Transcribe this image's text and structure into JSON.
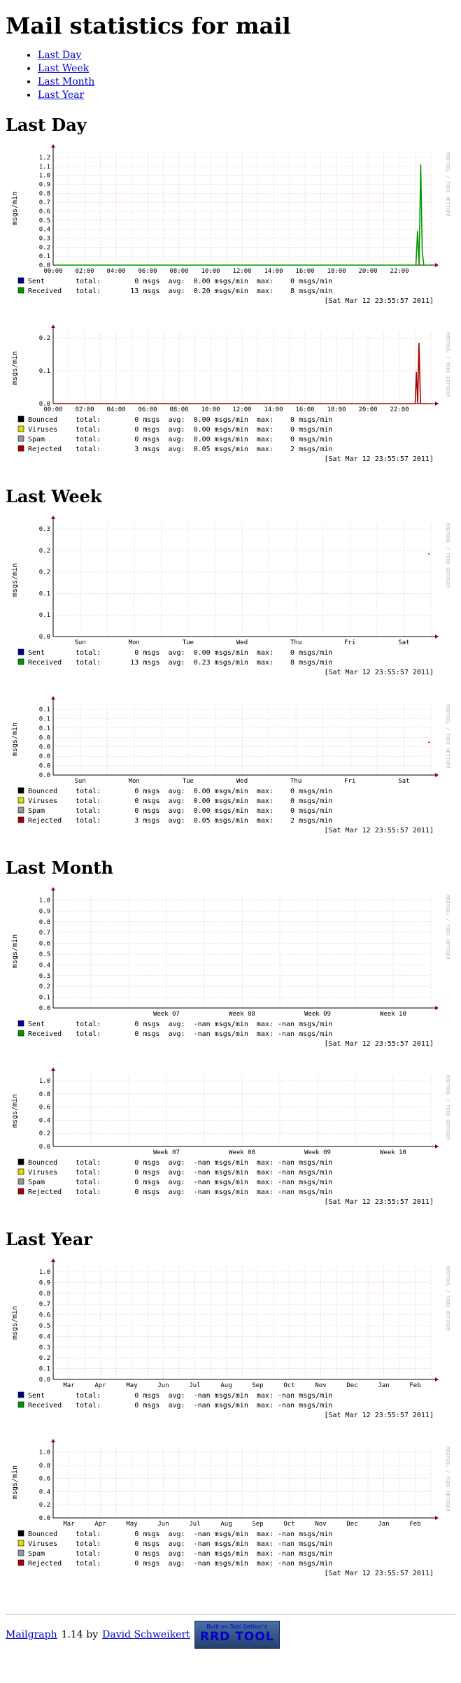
{
  "page": {
    "title": "Mail statistics for mail",
    "nav": [
      "Last Day",
      "Last Week",
      "Last Month",
      "Last Year"
    ]
  },
  "timestamp": "[Sat Mar 12 23:55:57 2011]",
  "watermark": "RRDTOOL / TOBI OETIKER",
  "ylabel": "msgs/min",
  "colors": {
    "sent": "#000099",
    "received": "#009900",
    "bounced": "#000000",
    "viruses": "#dddd00",
    "spam": "#999999",
    "rejected": "#aa0000",
    "grid": "#f0c0c0",
    "arrow": "#990000"
  },
  "sections": [
    {
      "title": "Last Day",
      "charts": [
        {
          "type": "line",
          "xlabels": [
            "00:00",
            "02:00",
            "04:00",
            "06:00",
            "08:00",
            "10:00",
            "12:00",
            "14:00",
            "16:00",
            "18:00",
            "20:00",
            "22:00"
          ],
          "yticks": [
            "0.0",
            "0.1",
            "0.2",
            "0.3",
            "0.4",
            "0.5",
            "0.6",
            "0.7",
            "0.8",
            "0.9",
            "1.0",
            "1.1",
            "1.2"
          ],
          "ymax": 1.2,
          "series": [
            {
              "key": "received",
              "points": [
                [
                  0,
                  0
                ],
                [
                  23.05,
                  0
                ],
                [
                  23.15,
                  0.38
                ],
                [
                  23.25,
                  0
                ],
                [
                  23.35,
                  1.12
                ],
                [
                  23.45,
                  0.15
                ],
                [
                  23.55,
                  0
                ],
                [
                  24,
                  0
                ]
              ]
            }
          ],
          "legend": [
            {
              "key": "sent",
              "label": "Sent",
              "line": "total:        0 msgs  avg:  0.00 msgs/min  max:    0 msgs/min"
            },
            {
              "key": "received",
              "label": "Received",
              "line": "total:       13 msgs  avg:  0.20 msgs/min  max:    8 msgs/min"
            }
          ]
        },
        {
          "type": "line",
          "xlabels": [
            "00:00",
            "02:00",
            "04:00",
            "06:00",
            "08:00",
            "10:00",
            "12:00",
            "14:00",
            "16:00",
            "18:00",
            "20:00",
            "22:00"
          ],
          "yticks": [
            "0.0",
            "0.1",
            "0.2"
          ],
          "ymax": 0.27,
          "series": [
            {
              "key": "rejected",
              "points": [
                [
                  0,
                  0
                ],
                [
                  23.0,
                  0
                ],
                [
                  23.08,
                  0.13
                ],
                [
                  23.16,
                  0
                ],
                [
                  23.24,
                  0.25
                ],
                [
                  23.34,
                  0
                ],
                [
                  24,
                  0
                ]
              ]
            }
          ],
          "legend": [
            {
              "key": "bounced",
              "label": "Bounced",
              "line": "total:        0 msgs  avg:  0.00 msgs/min  max:    0 msgs/min"
            },
            {
              "key": "viruses",
              "label": "Viruses",
              "line": "total:        0 msgs  avg:  0.00 msgs/min  max:    0 msgs/min"
            },
            {
              "key": "spam",
              "label": "Spam",
              "line": "total:        0 msgs  avg:  0.00 msgs/min  max:    0 msgs/min"
            },
            {
              "key": "rejected",
              "label": "Rejected",
              "line": "total:        3 msgs  avg:  0.05 msgs/min  max:    2 msgs/min"
            }
          ]
        }
      ]
    },
    {
      "title": "Last Week",
      "charts": [
        {
          "type": "line",
          "xlabels": [
            "Sun",
            "Mon",
            "Tue",
            "Wed",
            "Thu",
            "Fri",
            "Sat"
          ],
          "yticks": [
            "0.0",
            "0.1",
            "0.1",
            "0.2",
            "0.2",
            "0.3"
          ],
          "ymax": 0.3,
          "series": [
            {
              "key": "received",
              "points": [
                [
                  6.95,
                  0.23
                ],
                [
                  6.98,
                  0.23
                ]
              ]
            }
          ],
          "legend": [
            {
              "key": "sent",
              "label": "Sent",
              "line": "total:        0 msgs  avg:  0.00 msgs/min  max:    0 msgs/min"
            },
            {
              "key": "received",
              "label": "Received",
              "line": "total:       13 msgs  avg:  0.23 msgs/min  max:    8 msgs/min"
            }
          ]
        },
        {
          "type": "line",
          "xlabels": [
            "Sun",
            "Mon",
            "Tue",
            "Wed",
            "Thu",
            "Fri",
            "Sat"
          ],
          "yticks": [
            "0.0",
            "0.0",
            "0.0",
            "0.0",
            "0.0",
            "0.1",
            "0.1",
            "0.1"
          ],
          "ymax": 0.1,
          "series": [
            {
              "key": "rejected",
              "points": [
                [
                  6.95,
                  0.05
                ],
                [
                  6.98,
                  0.05
                ]
              ]
            }
          ],
          "legend": [
            {
              "key": "bounced",
              "label": "Bounced",
              "line": "total:        0 msgs  avg:  0.00 msgs/min  max:    0 msgs/min"
            },
            {
              "key": "viruses",
              "label": "Viruses",
              "line": "total:        0 msgs  avg:  0.00 msgs/min  max:    0 msgs/min"
            },
            {
              "key": "spam",
              "label": "Spam",
              "line": "total:        0 msgs  avg:  0.00 msgs/min  max:    0 msgs/min"
            },
            {
              "key": "rejected",
              "label": "Rejected",
              "line": "total:        3 msgs  avg:  0.05 msgs/min  max:    2 msgs/min"
            }
          ]
        }
      ]
    },
    {
      "title": "Last Month",
      "charts": [
        {
          "type": "line",
          "xlabels": [
            "",
            "Week 07",
            "Week 08",
            "Week 09",
            "Week 10"
          ],
          "yticks": [
            "0.0",
            "0.1",
            "0.2",
            "0.3",
            "0.4",
            "0.5",
            "0.6",
            "0.7",
            "0.8",
            "0.9",
            "1.0"
          ],
          "ymax": 1.0,
          "series": [],
          "legend": [
            {
              "key": "sent",
              "label": "Sent",
              "line": "total:        0 msgs  avg:  -nan msgs/min  max: -nan msgs/min"
            },
            {
              "key": "received",
              "label": "Received",
              "line": "total:        0 msgs  avg:  -nan msgs/min  max: -nan msgs/min"
            }
          ]
        },
        {
          "type": "line",
          "xlabels": [
            "",
            "Week 07",
            "Week 08",
            "Week 09",
            "Week 10"
          ],
          "yticks": [
            "0.0",
            "0.2",
            "0.4",
            "0.6",
            "0.8",
            "1.0"
          ],
          "ymax": 1.0,
          "series": [],
          "legend": [
            {
              "key": "bounced",
              "label": "Bounced",
              "line": "total:        0 msgs  avg:  -nan msgs/min  max: -nan msgs/min"
            },
            {
              "key": "viruses",
              "label": "Viruses",
              "line": "total:        0 msgs  avg:  -nan msgs/min  max: -nan msgs/min"
            },
            {
              "key": "spam",
              "label": "Spam",
              "line": "total:        0 msgs  avg:  -nan msgs/min  max: -nan msgs/min"
            },
            {
              "key": "rejected",
              "label": "Rejected",
              "line": "total:        0 msgs  avg:  -nan msgs/min  max: -nan msgs/min"
            }
          ]
        }
      ]
    },
    {
      "title": "Last Year",
      "charts": [
        {
          "type": "line",
          "xlabels": [
            "Mar",
            "Apr",
            "May",
            "Jun",
            "Jul",
            "Aug",
            "Sep",
            "Oct",
            "Nov",
            "Dec",
            "Jan",
            "Feb"
          ],
          "yticks": [
            "0.0",
            "0.1",
            "0.2",
            "0.3",
            "0.4",
            "0.5",
            "0.6",
            "0.7",
            "0.8",
            "0.9",
            "1.0"
          ],
          "ymax": 1.0,
          "series": [],
          "legend": [
            {
              "key": "sent",
              "label": "Sent",
              "line": "total:        0 msgs  avg:  -nan msgs/min  max: -nan msgs/min"
            },
            {
              "key": "received",
              "label": "Received",
              "line": "total:        0 msgs  avg:  -nan msgs/min  max: -nan msgs/min"
            }
          ]
        },
        {
          "type": "line",
          "xlabels": [
            "Mar",
            "Apr",
            "May",
            "Jun",
            "Jul",
            "Aug",
            "Sep",
            "Oct",
            "Nov",
            "Dec",
            "Jan",
            "Feb"
          ],
          "yticks": [
            "0.0",
            "0.2",
            "0.4",
            "0.6",
            "0.8",
            "1.0"
          ],
          "ymax": 1.0,
          "series": [],
          "legend": [
            {
              "key": "bounced",
              "label": "Bounced",
              "line": "total:        0 msgs  avg:  -nan msgs/min  max: -nan msgs/min"
            },
            {
              "key": "viruses",
              "label": "Viruses",
              "line": "total:        0 msgs  avg:  -nan msgs/min  max: -nan msgs/min"
            },
            {
              "key": "spam",
              "label": "Spam",
              "line": "total:        0 msgs  avg:  -nan msgs/min  max: -nan msgs/min"
            },
            {
              "key": "rejected",
              "label": "Rejected",
              "line": "total:        0 msgs  avg:  -nan msgs/min  max: -nan msgs/min"
            }
          ]
        }
      ]
    }
  ],
  "footer": {
    "app_link": "Mailgraph",
    "version": "1.14 by",
    "author_link": "David Schweikert",
    "badge_small": "Built on Tobi Oetiker's",
    "badge_big": "RRD TOOL"
  }
}
